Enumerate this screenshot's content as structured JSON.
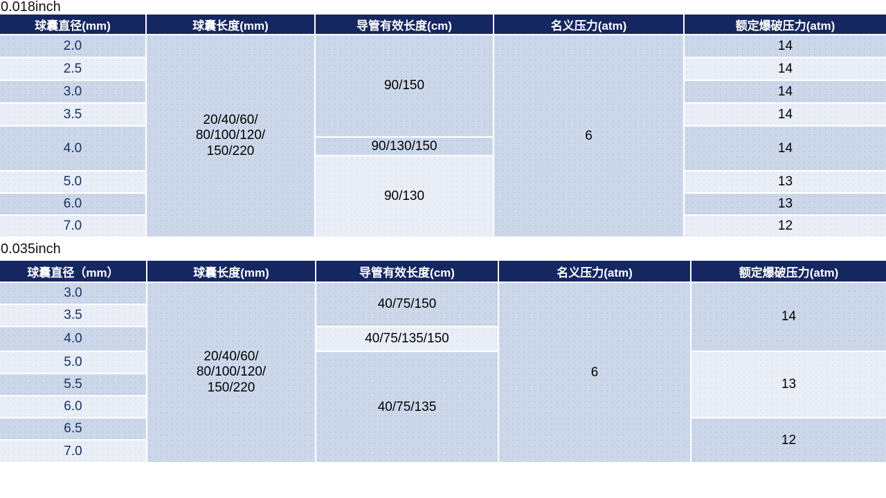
{
  "colors": {
    "header_bg": "#152760",
    "row_dark": "#ccd8ea",
    "row_light": "#e9eef7",
    "header_text": "#ffffff",
    "diameter_text": "#17305f",
    "value_text": "#000000",
    "page_bg": "#ffffff"
  },
  "tables": [
    {
      "title": "0.018inch",
      "headers": [
        "球囊直径(mm)",
        "球囊长度(mm)",
        "导管有效长度(cm)",
        "名义压力(atm)",
        "额定爆破压力(atm)"
      ],
      "diameters": [
        "2.0",
        "2.5",
        "3.0",
        "3.5",
        "4.0",
        "5.0",
        "6.0",
        "7.0"
      ],
      "balloon_length_lines": [
        "20/40/60/",
        "80/100/120/",
        "150/220"
      ],
      "catheter_lengths": [
        "90/150",
        "90/130/150",
        "90/130"
      ],
      "nominal_pressure": "6",
      "burst_pressures": [
        "14",
        "14",
        "14",
        "14",
        "14",
        "13",
        "13",
        "12"
      ]
    },
    {
      "title": "0.035inch",
      "headers": [
        "球囊直径（mm）",
        "球囊长度(mm)",
        "导管有效长度(cm)",
        "名义压力(atm)",
        "额定爆破压力(atm)"
      ],
      "diameters": [
        "3.0",
        "3.5",
        "4.0",
        "5.0",
        "5.5",
        "6.0",
        "6.5",
        "7.0"
      ],
      "balloon_length_lines": [
        "20/40/60/",
        "80/100/120/",
        "150/220"
      ],
      "catheter_lengths": [
        "40/75/150",
        "40/75/135/150",
        "40/75/135"
      ],
      "nominal_pressure": "6",
      "burst_pressures": [
        "14",
        "13",
        "12"
      ]
    }
  ]
}
